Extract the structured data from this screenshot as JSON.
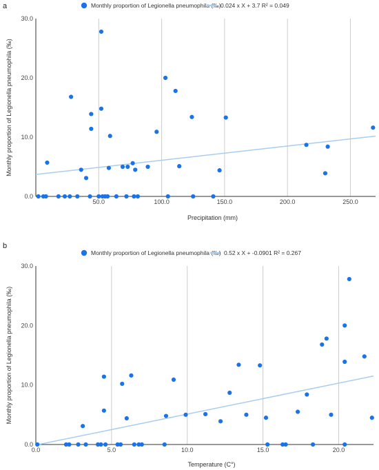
{
  "chart_data": [
    {
      "type": "scatter",
      "panel_label": "a",
      "legend": {
        "points_label": "Monthly proportion of  Legionella pneumophila (‰)",
        "trend_label": "0.024 x X + 3.7 R² = 0.049",
        "placement": "top"
      },
      "xlabel": "Precipitation (mm)",
      "ylabel": "Monthly proportion of  Legionella pneumophila (‰)",
      "xlim": [
        0,
        270
      ],
      "ylim": [
        0,
        30
      ],
      "xticks": [
        "50.0",
        "100.0",
        "150.0",
        "200.0",
        "250.0"
      ],
      "yticks": [
        "0.0",
        "10.0",
        "20.0",
        "30.0"
      ],
      "grid": "vertical",
      "colors": {
        "points": "#1a73e8",
        "trend": "#a8cdee"
      },
      "trendline": {
        "slope": 0.024,
        "intercept": 3.7
      },
      "points": [
        [
          2,
          0
        ],
        [
          6,
          0
        ],
        [
          8,
          0
        ],
        [
          9,
          5.7
        ],
        [
          18,
          0
        ],
        [
          23,
          0
        ],
        [
          27,
          0
        ],
        [
          28,
          16.8
        ],
        [
          33,
          0
        ],
        [
          36,
          4.5
        ],
        [
          40,
          3.1
        ],
        [
          43,
          0
        ],
        [
          44,
          11.4
        ],
        [
          44,
          13.9
        ],
        [
          50,
          0
        ],
        [
          52,
          14.8
        ],
        [
          52,
          27.8
        ],
        [
          53,
          0
        ],
        [
          55,
          0
        ],
        [
          57,
          0
        ],
        [
          58,
          4.8
        ],
        [
          59,
          10.2
        ],
        [
          64,
          0
        ],
        [
          69,
          5.0
        ],
        [
          72,
          0
        ],
        [
          73,
          5.0
        ],
        [
          77,
          5.6
        ],
        [
          78,
          0
        ],
        [
          79,
          4.5
        ],
        [
          81,
          0
        ],
        [
          89,
          5.0
        ],
        [
          96,
          10.9
        ],
        [
          103,
          20.0
        ],
        [
          105,
          0
        ],
        [
          111,
          17.8
        ],
        [
          114,
          5.1
        ],
        [
          124,
          13.4
        ],
        [
          125,
          0
        ],
        [
          141,
          0
        ],
        [
          146,
          4.4
        ],
        [
          151,
          13.3
        ],
        [
          215,
          8.7
        ],
        [
          230,
          3.9
        ],
        [
          232,
          8.4
        ],
        [
          268,
          11.6
        ]
      ]
    },
    {
      "type": "scatter",
      "panel_label": "b",
      "legend": {
        "points_label": "Monthly proportion of  Legionella pneumophila (‰)",
        "trend_label": "0.52 x X + -0.0901 R² = 0.267",
        "placement": "top"
      },
      "xlabel": "Temperature (C°)",
      "ylabel": "Monthly proportion of  Legionella pneumophila (‰)",
      "xlim": [
        0,
        22.3
      ],
      "ylim": [
        0,
        30
      ],
      "xticks": [
        "0.0",
        "5.0",
        "10.0",
        "15.0",
        "20.0"
      ],
      "yticks": [
        "0.0",
        "10.0",
        "20.0",
        "30.0"
      ],
      "grid": "vertical",
      "colors": {
        "points": "#1a73e8",
        "trend": "#a8cdee"
      },
      "trendline": {
        "slope": 0.52,
        "intercept": -0.0901
      },
      "points": [
        [
          0.1,
          0
        ],
        [
          2.0,
          0
        ],
        [
          2.2,
          0
        ],
        [
          2.8,
          0
        ],
        [
          3.1,
          3.1
        ],
        [
          3.3,
          0
        ],
        [
          4.1,
          0
        ],
        [
          4.3,
          0
        ],
        [
          4.5,
          5.7
        ],
        [
          4.5,
          11.4
        ],
        [
          4.6,
          0
        ],
        [
          5.4,
          0
        ],
        [
          5.6,
          0
        ],
        [
          5.7,
          10.2
        ],
        [
          6.0,
          4.4
        ],
        [
          6.3,
          11.6
        ],
        [
          6.5,
          0
        ],
        [
          6.8,
          0
        ],
        [
          7.0,
          0
        ],
        [
          8.5,
          0
        ],
        [
          8.6,
          4.8
        ],
        [
          9.1,
          10.9
        ],
        [
          9.9,
          5.0
        ],
        [
          11.2,
          5.1
        ],
        [
          12.2,
          3.9
        ],
        [
          12.8,
          8.7
        ],
        [
          13.4,
          13.4
        ],
        [
          13.9,
          5.0
        ],
        [
          14.8,
          13.3
        ],
        [
          15.2,
          4.5
        ],
        [
          15.3,
          0
        ],
        [
          16.3,
          0
        ],
        [
          16.5,
          0
        ],
        [
          17.3,
          5.5
        ],
        [
          17.9,
          8.4
        ],
        [
          18.3,
          0
        ],
        [
          18.9,
          16.8
        ],
        [
          19.2,
          17.8
        ],
        [
          19.5,
          5.0
        ],
        [
          20.4,
          13.9
        ],
        [
          20.4,
          20.0
        ],
        [
          20.4,
          0
        ],
        [
          20.7,
          27.8
        ],
        [
          21.7,
          14.8
        ],
        [
          22.2,
          4.5
        ]
      ]
    }
  ]
}
